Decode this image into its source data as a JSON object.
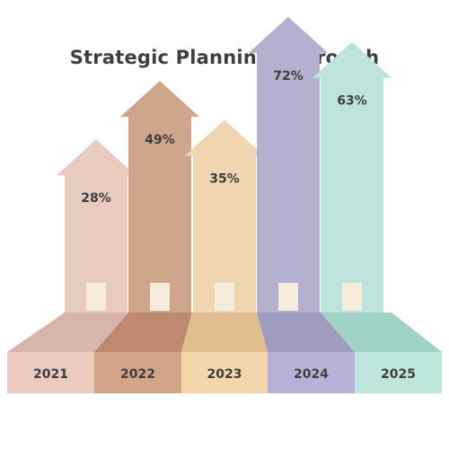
{
  "chart_data": {
    "type": "bar",
    "title": "Strategic Planning & Growth",
    "categories": [
      "2021",
      "2022",
      "2023",
      "2024",
      "2025"
    ],
    "values": [
      28,
      49,
      35,
      72,
      63
    ],
    "value_suffix": "%",
    "xlabel": "",
    "ylabel": "",
    "grid": false,
    "legend": "none"
  },
  "colors": {
    "body": [
      "#e8cbbf",
      "#cfa58c",
      "#f0d6b0",
      "#b3b1cf",
      "#bde4da"
    ],
    "base_top": [
      "#d8b4aa",
      "#bd8a70",
      "#e1be91",
      "#9f9cc0",
      "#9ed3c5"
    ],
    "base_front": [
      "#eccabf",
      "#d4a488",
      "#f4d6aa",
      "#b5b1d8",
      "#bde6dc"
    ],
    "door": "#f6ecdb",
    "text": "#3e3e3e"
  }
}
